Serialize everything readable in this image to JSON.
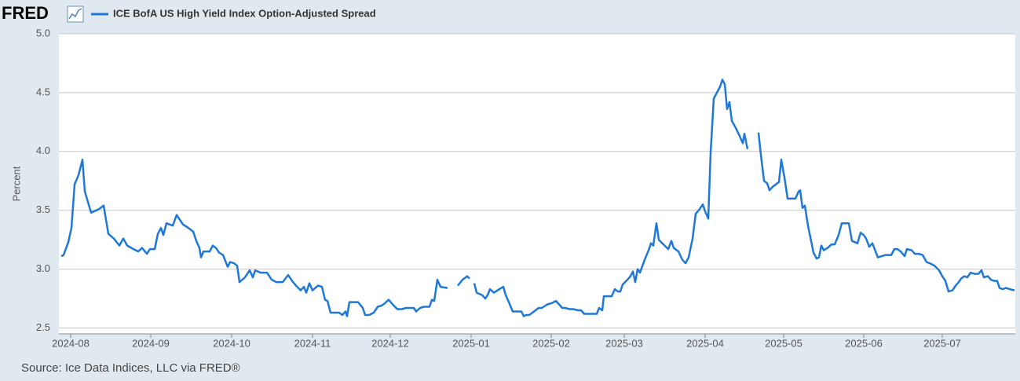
{
  "logo": "FRED",
  "source": "Source: Ice Data Indices, LLC via FRED®",
  "chart_data": {
    "type": "line",
    "ylabel": "Percent",
    "grid": true,
    "x": [
      0,
      0.9,
      2.7,
      3.9,
      5.1,
      6.6,
      8.1,
      9,
      11.4,
      14.4,
      16.2,
      18,
      20.1,
      22.2,
      23.7,
      25.2,
      27.6,
      29.4,
      30.9,
      32.7,
      33.9,
      35.7,
      36.9,
      38.1,
      39,
      40.2,
      42.6,
      44.1,
      45,
      46.5,
      48.6,
      50.4,
      51.6,
      52.8,
      53.4,
      54.3,
      56.7,
      57.9,
      59.1,
      60.3,
      61.8,
      63.6,
      64.5,
      66,
      67.2,
      68.1,
      70.2,
      72,
      73.2,
      74.1,
      76.2,
      78.6,
      80.4,
      82.2,
      84.6,
      86.7,
      88.2,
      89.7,
      91.5,
      92.7,
      93.6,
      94.8,
      96,
      98.1,
      99.6,
      100.8,
      101.7,
      102.9,
      105,
      106.2,
      107.4,
      108.6,
      109.2,
      110.1,
      113.4,
      115.2,
      116.1,
      117.6,
      119.4,
      120.9,
      122.4,
      123.6,
      125.1,
      126.6,
      128.4,
      130.2,
      131.7,
      133.2,
      134.7,
      135.6,
      137.1,
      138.6,
      140.7,
      141.6,
      142.5,
      143.7,
      144.9,
      147.6,
      149.5,
      151.5,
      153.3,
      155.1,
      156,
      157,
      157.8,
      158.7,
      160.8,
      162,
      162.9,
      163.8,
      165.3,
      167.4,
      168.9,
      169.8,
      171,
      172.5,
      174.6,
      175.8,
      176.7,
      177.6,
      178.8,
      180.6,
      182.4,
      183.6,
      185.7,
      187.2,
      189,
      190.2,
      191.4,
      192.6,
      194.1,
      195.6,
      197.4,
      198.6,
      199.8,
      201.6,
      203.1,
      204.6,
      205.5,
      206.7,
      207.3,
      209.1,
      210.3,
      211.5,
      212.7,
      213.6,
      214.5,
      216.3,
      217.5,
      218.4,
      219.3,
      220.2,
      221.1,
      222.9,
      224.4,
      225.3,
      226.2,
      227.4,
      228.3,
      230.1,
      231.9,
      233.1,
      234,
      235.8,
      237.3,
      238.5,
      239.7,
      241.2,
      242.4,
      243.9,
      245.1,
      246,
      247.2,
      248.1,
      249.3,
      250.5,
      251.7,
      252.6,
      253.5,
      254.4,
      255.3,
      256.2,
      257.7,
      259.2,
      260.4,
      261,
      262.2,
      264,
      266.4,
      267.3,
      268.5,
      269.7,
      270.6,
      271.8,
      273,
      274.2,
      275.1,
      276.3,
      277.5,
      279.3,
      280.5,
      281.7,
      282.3,
      283.2,
      284.1,
      285.3,
      286.5,
      287.4,
      288.6,
      289.5,
      290.4,
      291.3,
      292.8,
      294.3,
      295.5,
      297,
      298.2,
      300.9,
      302.1,
      304.2,
      305.4,
      306.6,
      307.5,
      308.7,
      309.9,
      311.1,
      312,
      313.5,
      315,
      317.1,
      318.3,
      319.5,
      320.7,
      322.2,
      323.1,
      324.9,
      326.1,
      327.6,
      329.1,
      330.6,
      331.8,
      333.6,
      335.4,
      336.6,
      337.8,
      339,
      340.5,
      341.7,
      342.9,
      343.8,
      345,
      346.2,
      347.4,
      348.9,
      350.4,
      351.6,
      352.5,
      354,
      355.2,
      356.4,
      357.6,
      358.5,
      359.7,
      360.9,
      362.4,
      364.2
    ],
    "series": [
      {
        "name": "ICE BofA US High Yield Index Option-Adjusted Spread",
        "color": "#1e78d8",
        "values": [
          3.11,
          3.12,
          3.23,
          3.35,
          3.72,
          3.8,
          3.93,
          3.66,
          3.48,
          3.51,
          3.54,
          3.3,
          3.26,
          3.2,
          3.26,
          3.2,
          3.17,
          3.15,
          3.18,
          3.13,
          3.17,
          3.17,
          3.3,
          3.35,
          3.29,
          3.39,
          3.37,
          3.46,
          3.43,
          3.38,
          3.35,
          3.32,
          3.24,
          3.18,
          3.1,
          3.15,
          3.15,
          3.2,
          3.18,
          3.14,
          3.12,
          3.02,
          3.06,
          3.05,
          3.03,
          2.89,
          2.93,
          2.99,
          2.93,
          2.99,
          2.97,
          2.97,
          2.91,
          2.89,
          2.89,
          2.95,
          2.9,
          2.86,
          2.82,
          2.85,
          2.8,
          2.88,
          2.82,
          2.86,
          2.85,
          2.74,
          2.73,
          2.63,
          2.63,
          2.63,
          2.61,
          2.64,
          2.6,
          2.72,
          2.72,
          2.67,
          2.61,
          2.61,
          2.63,
          2.68,
          2.69,
          2.71,
          2.74,
          2.7,
          2.66,
          2.66,
          2.67,
          2.67,
          2.67,
          2.64,
          2.67,
          2.68,
          2.68,
          2.74,
          2.73,
          2.91,
          2.85,
          2.84,
          null,
          2.86,
          2.91,
          2.94,
          2.92,
          null,
          2.88,
          2.8,
          2.78,
          2.75,
          2.78,
          2.83,
          2.8,
          2.83,
          2.85,
          2.78,
          2.72,
          2.64,
          2.64,
          2.64,
          2.6,
          2.61,
          2.61,
          2.64,
          2.67,
          2.67,
          2.7,
          2.71,
          2.73,
          2.7,
          2.67,
          2.67,
          2.66,
          2.66,
          2.65,
          2.65,
          2.62,
          2.62,
          2.62,
          2.62,
          2.67,
          2.65,
          2.77,
          2.77,
          2.77,
          2.83,
          2.81,
          2.81,
          2.87,
          2.91,
          2.94,
          2.98,
          2.89,
          3.0,
          2.97,
          3.08,
          3.16,
          3.22,
          3.2,
          3.39,
          3.25,
          3.21,
          3.17,
          3.24,
          3.18,
          3.15,
          3.08,
          3.05,
          3.1,
          3.26,
          3.47,
          3.51,
          3.55,
          3.49,
          3.43,
          3.99,
          4.45,
          4.5,
          4.55,
          4.61,
          4.57,
          4.36,
          4.42,
          4.26,
          4.2,
          4.13,
          4.07,
          4.15,
          4.02,
          null,
          4.16,
          3.97,
          3.75,
          3.73,
          3.67,
          3.7,
          3.72,
          3.74,
          3.93,
          3.78,
          3.6,
          3.6,
          3.6,
          3.66,
          3.67,
          3.52,
          3.54,
          3.37,
          3.24,
          3.14,
          3.09,
          3.1,
          3.2,
          3.16,
          3.18,
          3.21,
          3.21,
          3.29,
          3.39,
          3.39,
          3.24,
          3.22,
          3.31,
          3.29,
          3.26,
          3.19,
          3.22,
          3.15,
          3.1,
          3.11,
          3.12,
          3.12,
          3.17,
          3.17,
          3.15,
          3.11,
          3.17,
          3.16,
          3.13,
          3.13,
          3.12,
          3.06,
          3.05,
          3.03,
          2.99,
          2.94,
          2.9,
          2.81,
          2.82,
          2.86,
          2.89,
          2.92,
          2.94,
          2.93,
          2.97,
          2.96,
          2.96,
          2.99,
          2.93,
          2.94,
          2.91,
          2.9,
          2.9,
          2.84,
          2.83,
          2.84,
          2.83,
          2.82
        ]
      }
    ],
    "xlim": [
      0,
      364.5
    ],
    "xticks": [
      {
        "value": 3.6,
        "label": "2024-08"
      },
      {
        "value": 34.2,
        "label": "2024-09"
      },
      {
        "value": 65.1,
        "label": "2024-10"
      },
      {
        "value": 96,
        "label": "2024-11"
      },
      {
        "value": 125.7,
        "label": "2024-12"
      },
      {
        "value": 156.6,
        "label": "2025-01"
      },
      {
        "value": 187.2,
        "label": "2025-02"
      },
      {
        "value": 215.1,
        "label": "2025-03"
      },
      {
        "value": 246,
        "label": "2025-04"
      },
      {
        "value": 276,
        "label": "2025-05"
      },
      {
        "value": 306.6,
        "label": "2025-06"
      },
      {
        "value": 336.6,
        "label": "2025-07"
      }
    ],
    "ylim": [
      2.45,
      5.0
    ],
    "yticks": [
      2.5,
      {
        "value": 3.0,
        "label": "3.0"
      },
      3.5,
      {
        "value": 4.0,
        "label": "4.0"
      },
      4.5,
      {
        "value": 5.0,
        "label": "5.0"
      }
    ]
  }
}
